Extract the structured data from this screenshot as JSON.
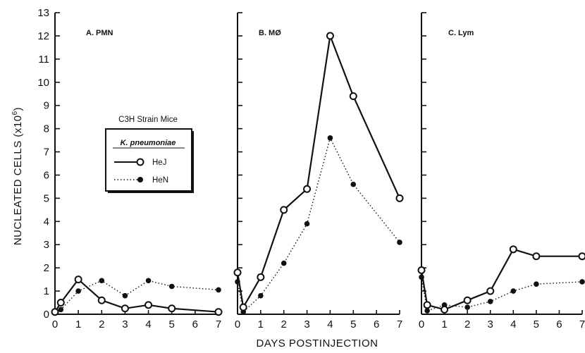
{
  "chart_data": [
    {
      "type": "line",
      "title": "A.  PMN",
      "xlabel": "DAYS POSTINJECTION",
      "ylabel": "NUCLEATED CELLS  (x10^6)",
      "xlim": [
        0,
        7
      ],
      "ylim": [
        0,
        13
      ],
      "x_ticks": [
        "0",
        "1",
        "2",
        "3",
        "4",
        "5",
        "6",
        "7"
      ],
      "y_ticks": [
        "0",
        "1",
        "2",
        "3",
        "4",
        "5",
        "6",
        "7",
        "8",
        "9",
        "10",
        "11",
        "12",
        "13"
      ],
      "grid": false,
      "series": [
        {
          "name": "HeJ",
          "x": [
            0,
            0.25,
            1,
            2,
            3,
            4,
            5,
            7
          ],
          "y": [
            0.1,
            0.5,
            1.5,
            0.6,
            0.25,
            0.4,
            0.25,
            0.1
          ]
        },
        {
          "name": "HeN",
          "x": [
            0,
            0.25,
            1,
            2,
            3,
            4,
            5,
            7
          ],
          "y": [
            0.05,
            0.2,
            1.0,
            1.45,
            0.8,
            1.45,
            1.2,
            1.05
          ]
        }
      ]
    },
    {
      "type": "line",
      "title": "B.   MØ",
      "xlim": [
        0,
        7
      ],
      "ylim": [
        0,
        13
      ],
      "x_ticks": [
        "0",
        "1",
        "2",
        "3",
        "4",
        "5",
        "6",
        "7"
      ],
      "grid": false,
      "series": [
        {
          "name": "HeJ",
          "x": [
            0,
            0.25,
            1,
            2,
            3,
            4,
            5,
            7
          ],
          "y": [
            1.8,
            0.3,
            1.6,
            4.5,
            5.4,
            12.0,
            9.4,
            5.0
          ]
        },
        {
          "name": "HeN",
          "x": [
            0,
            0.25,
            1,
            2,
            3,
            4,
            5,
            7
          ],
          "y": [
            1.4,
            0.1,
            0.8,
            2.2,
            3.9,
            7.6,
            5.6,
            3.1
          ]
        }
      ]
    },
    {
      "type": "line",
      "title": "C.  Lym",
      "xlim": [
        0,
        7
      ],
      "ylim": [
        0,
        13
      ],
      "x_ticks": [
        "0",
        "1",
        "2",
        "3",
        "4",
        "5",
        "6",
        "7"
      ],
      "grid": false,
      "series": [
        {
          "name": "HeJ",
          "x": [
            0,
            0.25,
            1,
            2,
            3,
            4,
            5,
            7
          ],
          "y": [
            1.9,
            0.4,
            0.2,
            0.6,
            1.0,
            2.8,
            2.5,
            2.5
          ]
        },
        {
          "name": "HeN",
          "x": [
            0,
            0.25,
            1,
            2,
            3,
            4,
            5,
            7
          ],
          "y": [
            1.6,
            0.15,
            0.4,
            0.3,
            0.55,
            1.0,
            1.3,
            1.4
          ]
        }
      ]
    }
  ],
  "legend": {
    "heading": "C3H Strain Mice",
    "subheading": "K. pneumoniae",
    "items": [
      {
        "label": "HeJ",
        "marker": "open-circle",
        "line": "solid"
      },
      {
        "label": "HeN",
        "marker": "filled-circle",
        "line": "dotted"
      }
    ],
    "placement": "inside panel A, middle"
  },
  "labels": {
    "ylabel_text": "NUCLEATED CELLS  (x10",
    "ylabel_exp": "6",
    "ylabel_close": ")",
    "xlabel": "DAYS POSTINJECTION"
  },
  "colors": {
    "ink": "#111111",
    "background": "#ffffff"
  }
}
